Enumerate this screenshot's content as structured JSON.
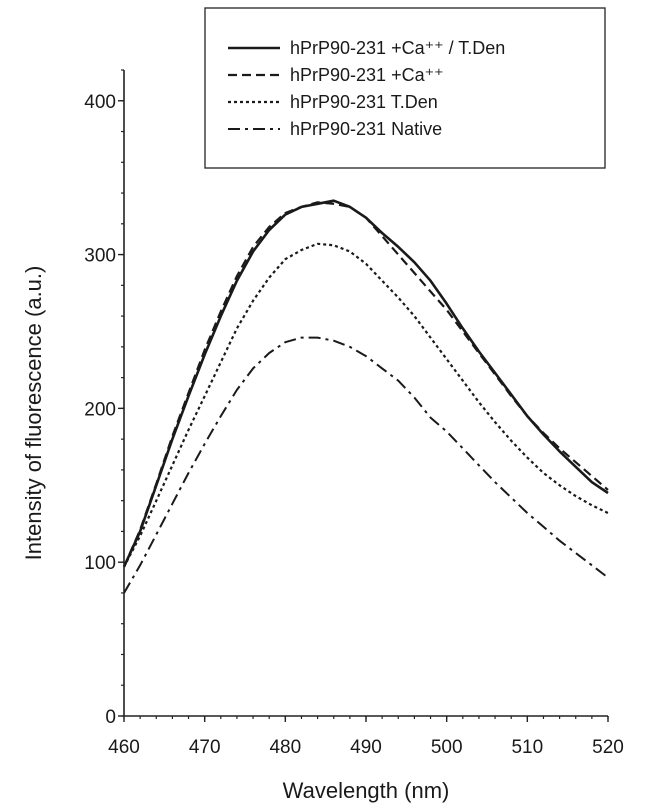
{
  "chart_data": {
    "type": "line",
    "title": "",
    "xlabel": "Wavelength (nm)",
    "ylabel": "Intensity of fluorescence (a.u.)",
    "xlim": [
      460,
      520
    ],
    "ylim": [
      0,
      420
    ],
    "x_ticks": [
      460,
      470,
      480,
      490,
      500,
      510,
      520
    ],
    "y_ticks": [
      0,
      100,
      200,
      300,
      400
    ],
    "grid": false,
    "legend_position": "top-right",
    "x": [
      460,
      462,
      464,
      466,
      468,
      470,
      472,
      474,
      476,
      478,
      480,
      482,
      484,
      486,
      488,
      490,
      492,
      494,
      496,
      498,
      500,
      502,
      504,
      506,
      508,
      510,
      512,
      514,
      516,
      518,
      520
    ],
    "series": [
      {
        "name": "hPrP90-231 +Ca⁺⁺ / T.Den",
        "dash": "solid",
        "values": [
          97,
          120,
          150,
          180,
          208,
          235,
          260,
          283,
          302,
          316,
          326,
          331,
          333,
          335,
          331,
          324,
          314,
          305,
          295,
          283,
          268,
          252,
          237,
          223,
          209,
          195,
          183,
          172,
          162,
          152,
          145
        ]
      },
      {
        "name": "hPrP90-231 +Ca⁺⁺",
        "dash": "dashed",
        "values": [
          97,
          121,
          151,
          182,
          210,
          238,
          263,
          286,
          305,
          318,
          327,
          331,
          334,
          333,
          331,
          324,
          312,
          300,
          288,
          276,
          264,
          250,
          236,
          222,
          208,
          195,
          184,
          174,
          165,
          156,
          147
        ]
      },
      {
        "name": "hPrP90-231 T.Den",
        "dash": "dotted",
        "values": [
          97,
          117,
          140,
          163,
          186,
          208,
          230,
          252,
          270,
          285,
          297,
          303,
          307,
          306,
          302,
          294,
          283,
          272,
          260,
          246,
          232,
          218,
          204,
          191,
          179,
          168,
          158,
          150,
          143,
          137,
          132
        ]
      },
      {
        "name": "hPrP90-231 Native",
        "dash": "dashdot",
        "values": [
          80,
          98,
          118,
          138,
          158,
          177,
          195,
          212,
          226,
          236,
          243,
          246,
          246,
          244,
          240,
          234,
          226,
          218,
          207,
          194,
          185,
          174,
          163,
          152,
          142,
          132,
          123,
          114,
          106,
          98,
          90
        ]
      }
    ]
  }
}
